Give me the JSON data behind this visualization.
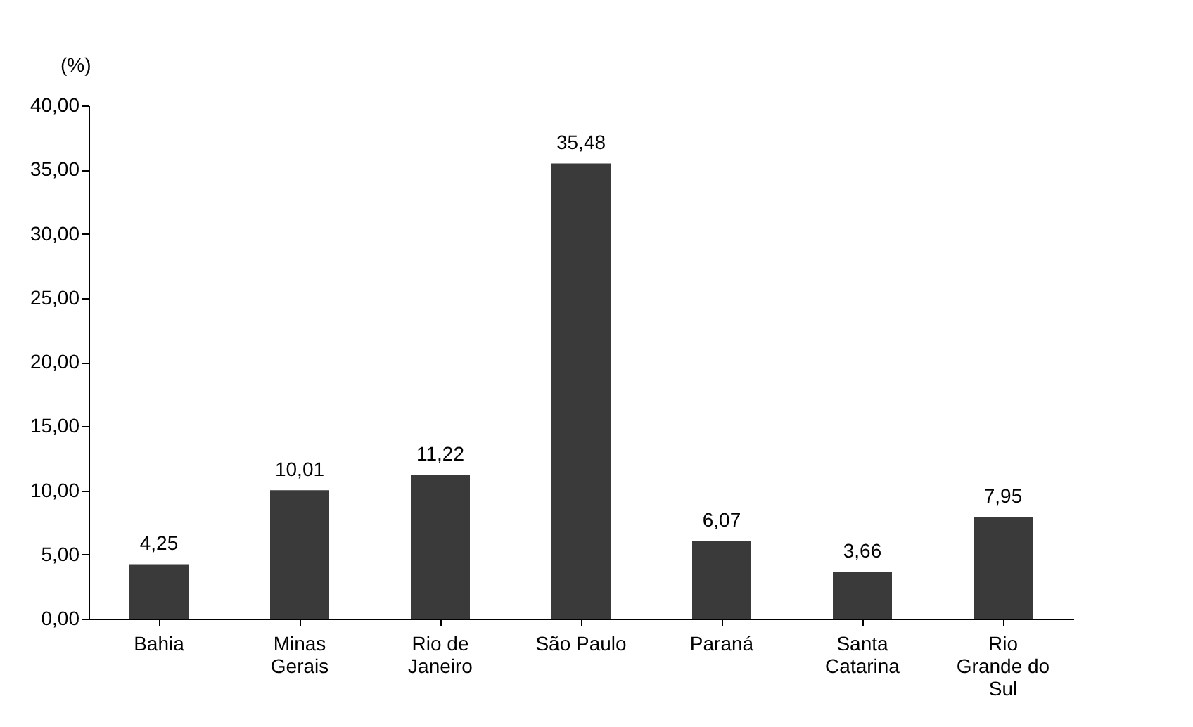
{
  "chart_data": {
    "type": "bar",
    "ylabel": "(%)",
    "categories": [
      "Bahia",
      "Minas Gerais",
      "Rio de Janeiro",
      "São Paulo",
      "Paraná",
      "Santa Catarina",
      "Rio Grande do Sul"
    ],
    "values": [
      4.25,
      10.01,
      11.22,
      35.48,
      6.07,
      3.66,
      7.95
    ],
    "value_labels": [
      "4,25",
      "10,01",
      "11,22",
      "35,48",
      "6,07",
      "3,66",
      "7,95"
    ],
    "color": "#3a3a3a",
    "ylim": [
      0,
      40
    ],
    "yticks": [
      {
        "value": 0,
        "label": "0,00"
      },
      {
        "value": 5,
        "label": "5,00"
      },
      {
        "value": 10,
        "label": "10,00"
      },
      {
        "value": 15,
        "label": "15,00"
      },
      {
        "value": 20,
        "label": "20,00"
      },
      {
        "value": 25,
        "label": "25,00"
      },
      {
        "value": 30,
        "label": "30,00"
      },
      {
        "value": 35,
        "label": "35,00"
      },
      {
        "value": 40,
        "label": "40,00"
      }
    ],
    "grid": false
  }
}
